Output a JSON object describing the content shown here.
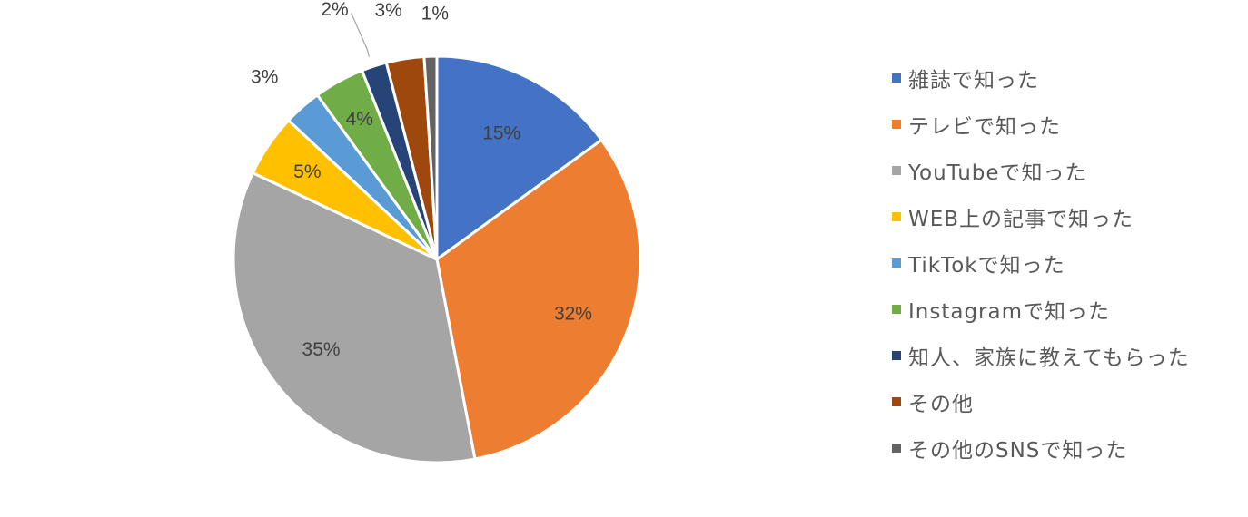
{
  "chart_data": {
    "type": "pie",
    "categories": [
      "雑誌で知った",
      "テレビで知った",
      "YouTubeで知った",
      "WEB上の記事で知った",
      "TikTokで知った",
      "Instagramで知った",
      "知人、家族に教えてもらった",
      "その他",
      "その他のSNSで知った"
    ],
    "values": [
      15,
      32,
      35,
      5,
      3,
      4,
      2,
      3,
      1
    ],
    "labels": [
      "15%",
      "32%",
      "35%",
      "5%",
      "3%",
      "4%",
      "2%",
      "3%",
      "1%"
    ],
    "colors": [
      "#4472C4",
      "#ED7D31",
      "#A5A5A5",
      "#FFC000",
      "#5B9BD5",
      "#70AD47",
      "#264478",
      "#9E480E",
      "#636363"
    ],
    "legend_position": "right",
    "title": ""
  }
}
